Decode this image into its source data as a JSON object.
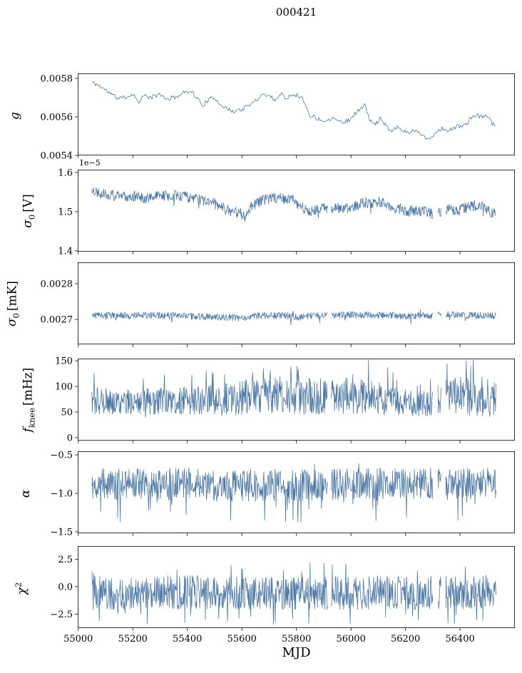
{
  "title": "000421",
  "xlabel": "MJD",
  "line_color": "#4e79a7",
  "frame_color": "#000000",
  "axes": {
    "xlim": [
      54998,
      56601
    ],
    "xticks": [
      55000,
      55200,
      55400,
      55600,
      55800,
      56000,
      56200,
      56400
    ],
    "xtick_labels": [
      "55000",
      "55200",
      "55400",
      "55600",
      "55800",
      "56000",
      "56200",
      "56400"
    ],
    "data_x_range": [
      55050,
      56533
    ]
  },
  "chart_data": [
    {
      "name": "g",
      "type": "line",
      "ylabel": {
        "main": "g",
        "sub": "",
        "sup": "",
        "unit": ""
      },
      "offset_text": "",
      "ylim": [
        0.0054,
        0.005826
      ],
      "ytick_values": [
        0.0054,
        0.0056,
        0.0058
      ],
      "ytick_labels": [
        "0.0054",
        "0.0056",
        "0.0058"
      ],
      "step": 4,
      "seed": 11,
      "trend": [
        [
          55050,
          0.00578
        ],
        [
          55080,
          0.00576
        ],
        [
          55110,
          0.00573
        ],
        [
          55140,
          0.0057
        ],
        [
          55170,
          0.0057
        ],
        [
          55200,
          0.00572
        ],
        [
          55220,
          0.00568
        ],
        [
          55240,
          0.00571
        ],
        [
          55270,
          0.0057
        ],
        [
          55300,
          0.00572
        ],
        [
          55320,
          0.00569
        ],
        [
          55350,
          0.0057
        ],
        [
          55380,
          0.00572
        ],
        [
          55410,
          0.00574
        ],
        [
          55440,
          0.00569
        ],
        [
          55455,
          0.00566
        ],
        [
          55480,
          0.00569
        ],
        [
          55500,
          0.0057
        ],
        [
          55520,
          0.00567
        ],
        [
          55545,
          0.00564
        ],
        [
          55570,
          0.00563
        ],
        [
          55600,
          0.00564
        ],
        [
          55630,
          0.00566
        ],
        [
          55660,
          0.0057
        ],
        [
          55680,
          0.00572
        ],
        [
          55700,
          0.00571
        ],
        [
          55720,
          0.00569
        ],
        [
          55745,
          0.00572
        ],
        [
          55760,
          0.0057
        ],
        [
          55790,
          0.00572
        ],
        [
          55820,
          0.0057
        ],
        [
          55850,
          0.00561
        ],
        [
          55880,
          0.00559
        ],
        [
          55910,
          0.00558
        ],
        [
          55940,
          0.0056
        ],
        [
          55970,
          0.00557
        ],
        [
          56000,
          0.00559
        ],
        [
          56030,
          0.00564
        ],
        [
          56050,
          0.00566
        ],
        [
          56070,
          0.00558
        ],
        [
          56090,
          0.00556
        ],
        [
          56110,
          0.0056
        ],
        [
          56130,
          0.00555
        ],
        [
          56150,
          0.00553
        ],
        [
          56170,
          0.00555
        ],
        [
          56200,
          0.00552
        ],
        [
          56230,
          0.00553
        ],
        [
          56260,
          0.00551
        ],
        [
          56290,
          0.00548
        ],
        [
          56310,
          0.00552
        ],
        [
          56330,
          0.00554
        ],
        [
          56360,
          0.00553
        ],
        [
          56390,
          0.00555
        ],
        [
          56420,
          0.00556
        ],
        [
          56440,
          0.00559
        ],
        [
          56460,
          0.00561
        ],
        [
          56480,
          0.0056
        ],
        [
          56500,
          0.00561
        ],
        [
          56520,
          0.00556
        ]
      ],
      "amp": [
        [
          55050,
          1.2e-05
        ]
      ],
      "spikes": {
        "p_up": 0,
        "up_extra": 0,
        "p_down": 0,
        "down_extra": 0
      },
      "clamp": [
        0.00546,
        0.0058
      ],
      "gaps": []
    },
    {
      "name": "sigma0_V",
      "type": "line",
      "ylabel": {
        "main": "σ",
        "sub": "0",
        "sup": "",
        "unit": "[V]"
      },
      "offset_text": "1e−5",
      "ylim": [
        1.398,
        1.607
      ],
      "ytick_values": [
        1.4,
        1.5,
        1.6
      ],
      "ytick_labels": [
        "1.4",
        "1.5",
        "1.6"
      ],
      "step": 1.6,
      "seed": 22,
      "trend": [
        [
          55050,
          1.555
        ],
        [
          55100,
          1.545
        ],
        [
          55150,
          1.538
        ],
        [
          55200,
          1.54
        ],
        [
          55250,
          1.535
        ],
        [
          55300,
          1.54
        ],
        [
          55350,
          1.542
        ],
        [
          55400,
          1.538
        ],
        [
          55430,
          1.532
        ],
        [
          55460,
          1.528
        ],
        [
          55500,
          1.52
        ],
        [
          55530,
          1.51
        ],
        [
          55560,
          1.5
        ],
        [
          55590,
          1.497
        ],
        [
          55610,
          1.49
        ],
        [
          55630,
          1.51
        ],
        [
          55650,
          1.52
        ],
        [
          55680,
          1.53
        ],
        [
          55710,
          1.535
        ],
        [
          55750,
          1.535
        ],
        [
          55790,
          1.53
        ],
        [
          55820,
          1.51
        ],
        [
          55840,
          1.5
        ],
        [
          55860,
          1.505
        ],
        [
          55880,
          1.51
        ],
        [
          55900,
          1.51
        ],
        [
          55930,
          1.508
        ],
        [
          55960,
          1.51
        ],
        [
          55990,
          1.507
        ],
        [
          56010,
          1.51
        ],
        [
          56040,
          1.525
        ],
        [
          56070,
          1.52
        ],
        [
          56100,
          1.525
        ],
        [
          56130,
          1.52
        ],
        [
          56160,
          1.51
        ],
        [
          56190,
          1.505
        ],
        [
          56210,
          1.5
        ],
        [
          56240,
          1.505
        ],
        [
          56270,
          1.5
        ],
        [
          56300,
          1.495
        ],
        [
          56330,
          1.5
        ],
        [
          56360,
          1.505
        ],
        [
          56390,
          1.5
        ],
        [
          56420,
          1.51
        ],
        [
          56450,
          1.515
        ],
        [
          56480,
          1.515
        ],
        [
          56510,
          1.5
        ],
        [
          56533,
          1.49
        ]
      ],
      "amp": [
        [
          55050,
          0.014
        ]
      ],
      "spikes": {
        "p_up": 0,
        "up_extra": 0,
        "p_down": 0.006,
        "down_extra": 1.0
      },
      "clamp": [
        1.475,
        1.6
      ],
      "gaps": [
        [
          55915,
          55927
        ],
        [
          56300,
          56318
        ],
        [
          56331,
          56346
        ]
      ]
    },
    {
      "name": "sigma0_mK",
      "type": "line",
      "ylabel": {
        "main": "σ",
        "sub": "0",
        "sup": "",
        "unit": "[mK]"
      },
      "offset_text": "",
      "ylim": [
        0.00263,
        0.00286
      ],
      "ytick_values": [
        0.0027,
        0.0028
      ],
      "ytick_labels": [
        "0.0027",
        "0.0028"
      ],
      "step": 1.6,
      "seed": 33,
      "trend": [
        [
          55050,
          0.002712
        ],
        [
          55150,
          0.002711
        ],
        [
          55250,
          0.002712
        ],
        [
          55350,
          0.00271
        ],
        [
          55420,
          0.002708
        ],
        [
          55500,
          0.002707
        ],
        [
          55560,
          0.002705
        ],
        [
          55610,
          0.002703
        ],
        [
          55650,
          0.00271
        ],
        [
          55750,
          0.002712
        ],
        [
          55810,
          0.002705
        ],
        [
          55850,
          0.00271
        ],
        [
          55950,
          0.002712
        ],
        [
          56050,
          0.002713
        ],
        [
          56150,
          0.002712
        ],
        [
          56210,
          0.002708
        ],
        [
          56250,
          0.002712
        ],
        [
          56300,
          0.00271
        ],
        [
          56350,
          0.002714
        ],
        [
          56400,
          0.002712
        ],
        [
          56450,
          0.002711
        ],
        [
          56510,
          0.00271
        ]
      ],
      "amp": [
        [
          55050,
          9.5e-06
        ]
      ],
      "spikes": {
        "p_up": 0.002,
        "up_extra": 0.8,
        "p_down": 0.01,
        "down_extra": 1.8
      },
      "clamp": [
        0.00264,
        0.002745
      ],
      "gaps": [
        [
          55915,
          55927
        ],
        [
          56300,
          56318
        ],
        [
          56331,
          56346
        ]
      ]
    },
    {
      "name": "f_knee",
      "type": "line",
      "ylabel": {
        "main": "f",
        "sub": "knee",
        "sup": "",
        "unit": "[mHz]"
      },
      "offset_text": "",
      "ylim": [
        -5.6,
        154.2
      ],
      "ytick_values": [
        0,
        50,
        100,
        150
      ],
      "ytick_labels": [
        "0",
        "50",
        "100",
        "150"
      ],
      "step": 1.6,
      "seed": 44,
      "trend": [
        [
          55050,
          72
        ],
        [
          55150,
          70
        ],
        [
          55250,
          70
        ],
        [
          55350,
          72
        ],
        [
          55450,
          73
        ],
        [
          55550,
          75
        ],
        [
          55620,
          80
        ],
        [
          55700,
          82
        ],
        [
          55800,
          82
        ],
        [
          55900,
          80
        ],
        [
          55950,
          82
        ],
        [
          56050,
          80
        ],
        [
          56100,
          78
        ],
        [
          56150,
          72
        ],
        [
          56200,
          68
        ],
        [
          56250,
          65
        ],
        [
          56300,
          72
        ],
        [
          56350,
          80
        ],
        [
          56420,
          82
        ],
        [
          56480,
          80
        ],
        [
          56533,
          78
        ]
      ],
      "amp": [
        [
          55050,
          26
        ],
        [
          55300,
          26
        ],
        [
          55450,
          28
        ],
        [
          55550,
          32
        ],
        [
          55650,
          38
        ],
        [
          55800,
          38
        ],
        [
          55900,
          35
        ],
        [
          56000,
          36
        ],
        [
          56100,
          34
        ],
        [
          56180,
          26
        ],
        [
          56250,
          24
        ],
        [
          56320,
          38
        ],
        [
          56450,
          40
        ],
        [
          56533,
          38
        ]
      ],
      "spikes": {
        "p_up": 0.03,
        "up_extra": 1.0,
        "p_down": 0.004,
        "down_extra": 0.3
      },
      "clamp": [
        2,
        151
      ],
      "gaps": [
        [
          55915,
          55927
        ],
        [
          56300,
          56318
        ],
        [
          56331,
          56346
        ]
      ]
    },
    {
      "name": "alpha",
      "type": "line",
      "ylabel": {
        "main": "α",
        "sub": "",
        "sup": "",
        "unit": ""
      },
      "offset_text": "",
      "ylim": [
        -1.519,
        -0.454
      ],
      "ytick_values": [
        -1.5,
        -1.0,
        -0.5
      ],
      "ytick_labels": [
        "−1.5",
        "−1.0",
        "−0.5"
      ],
      "step": 1.6,
      "seed": 55,
      "trend": [
        [
          55050,
          -0.88
        ],
        [
          55400,
          -0.88
        ],
        [
          55600,
          -0.9
        ],
        [
          55900,
          -0.89
        ],
        [
          56200,
          -0.88
        ],
        [
          56533,
          -0.87
        ]
      ],
      "amp": [
        [
          55050,
          0.21
        ]
      ],
      "spikes": {
        "p_up": 0.004,
        "up_extra": 0.3,
        "p_down": 0.03,
        "down_extra": 1.3
      },
      "clamp": [
        -1.48,
        -0.6
      ],
      "gaps": [
        [
          55915,
          55927
        ],
        [
          56300,
          56318
        ],
        [
          56331,
          56346
        ]
      ]
    },
    {
      "name": "chi2",
      "type": "line",
      "ylabel": {
        "main": "χ",
        "sub": "",
        "sup": "2",
        "unit": ""
      },
      "offset_text": "",
      "ylim": [
        -3.77,
        3.7
      ],
      "ytick_values": [
        -2.5,
        0.0,
        2.5
      ],
      "ytick_labels": [
        "−2.5",
        "0.0",
        "2.5"
      ],
      "step": 1.6,
      "seed": 66,
      "trend": [
        [
          55050,
          -0.55
        ],
        [
          55500,
          -0.5
        ],
        [
          55800,
          -0.6
        ],
        [
          56100,
          -0.55
        ],
        [
          56533,
          -0.45
        ]
      ],
      "amp": [
        [
          55050,
          1.55
        ]
      ],
      "spikes": {
        "p_up": 0.012,
        "up_extra": 0.7,
        "p_down": 0.015,
        "down_extra": 0.8
      },
      "clamp": [
        -3.45,
        2.45
      ],
      "gaps": [
        [
          55915,
          55927
        ],
        [
          56300,
          56318
        ],
        [
          56331,
          56346
        ]
      ]
    }
  ]
}
